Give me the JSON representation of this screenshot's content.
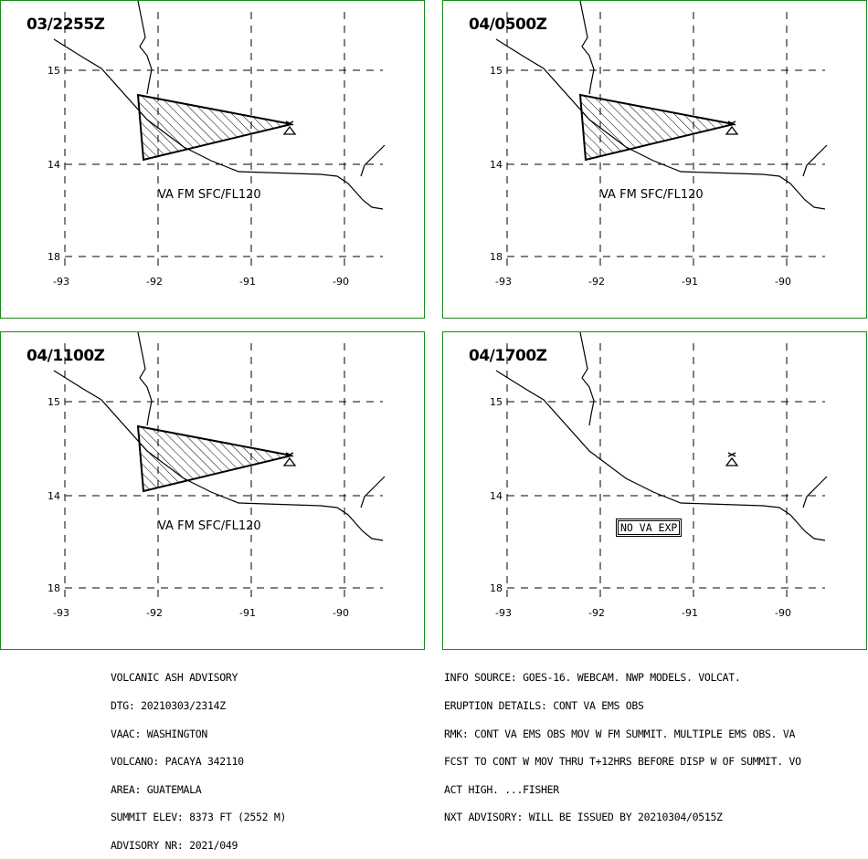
{
  "panels": [
    {
      "time": "03/2255Z",
      "va_label": "VA FM SFC/FL120",
      "show_va": true
    },
    {
      "time": "04/0500Z",
      "va_label": "VA FM SFC/FL120",
      "show_va": true
    },
    {
      "time": "04/1100Z",
      "va_label": "VA FM SFC/FL120",
      "show_va": true
    },
    {
      "time": "04/1700Z",
      "va_label": "NO VA EXP",
      "show_va": false
    }
  ],
  "map": {
    "lat_labels": [
      "15",
      "14",
      "18"
    ],
    "lon_labels": [
      "-93",
      "-92",
      "-91",
      "-90"
    ]
  },
  "advisory_left": [
    "VOLCANIC ASH ADVISORY",
    "DTG: 20210303/2314Z",
    "VAAC: WASHINGTON",
    "VOLCANO: PACAYA 342110",
    "AREA: GUATEMALA",
    "SUMMIT ELEV: 8373 FT (2552 M)",
    "ADVISORY NR: 2021/049"
  ],
  "advisory_right": [
    "INFO SOURCE: GOES-16. WEBCAM. NWP MODELS. VOLCAT.",
    "ERUPTION DETAILS: CONT VA EMS OBS",
    "RMK: CONT VA EMS OBS MOV W FM SUMMIT. MULTIPLE EMS OBS. VA",
    "FCST TO CONT W MOV THRU T+12HRS BEFORE DISP W OF SUMMIT. VO",
    "ACT HIGH. ...FISHER",
    "NXT ADVISORY: WILL BE ISSUED BY 20210304/0515Z"
  ],
  "colors": {
    "border": "#1a8a1a",
    "line": "#000000"
  },
  "icons": {
    "volcano": "volcano-icon"
  }
}
